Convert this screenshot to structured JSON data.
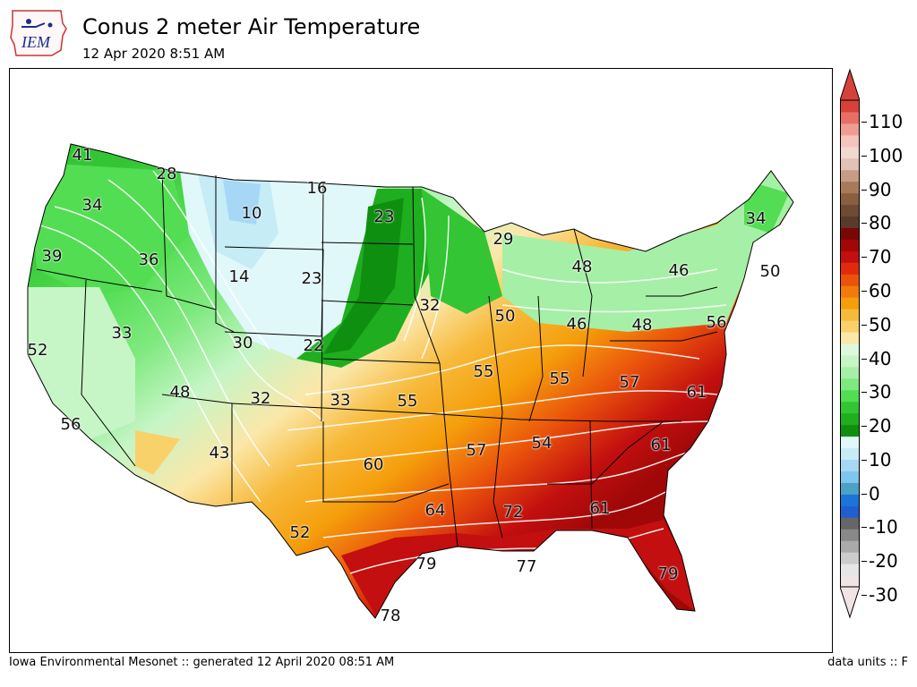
{
  "header": {
    "title": "Conus 2 meter Air Temperature",
    "timestamp": "12 Apr 2020 8:51 AM",
    "logo_text": "IEM"
  },
  "map": {
    "labels": [
      {
        "id": "t1",
        "value": "41"
      },
      {
        "id": "t2",
        "value": "28"
      },
      {
        "id": "t3",
        "value": "16"
      },
      {
        "id": "t4",
        "value": "34"
      },
      {
        "id": "t5",
        "value": "10"
      },
      {
        "id": "t6",
        "value": "23"
      },
      {
        "id": "t7",
        "value": "29"
      },
      {
        "id": "t8",
        "value": "34"
      },
      {
        "id": "t9",
        "value": "39"
      },
      {
        "id": "t10",
        "value": "36"
      },
      {
        "id": "t11",
        "value": "14"
      },
      {
        "id": "t12",
        "value": "23"
      },
      {
        "id": "t13",
        "value": "48"
      },
      {
        "id": "t14",
        "value": "46"
      },
      {
        "id": "t15",
        "value": "50"
      },
      {
        "id": "t16",
        "value": "32"
      },
      {
        "id": "t17",
        "value": "50"
      },
      {
        "id": "t18",
        "value": "33"
      },
      {
        "id": "t19",
        "value": "30"
      },
      {
        "id": "t20",
        "value": "22"
      },
      {
        "id": "t21",
        "value": "46"
      },
      {
        "id": "t22",
        "value": "48"
      },
      {
        "id": "t23",
        "value": "56"
      },
      {
        "id": "t24",
        "value": "52"
      },
      {
        "id": "t25",
        "value": "55"
      },
      {
        "id": "t26",
        "value": "55"
      },
      {
        "id": "t27",
        "value": "57"
      },
      {
        "id": "t28",
        "value": "48"
      },
      {
        "id": "t29",
        "value": "32"
      },
      {
        "id": "t30",
        "value": "33"
      },
      {
        "id": "t31",
        "value": "55"
      },
      {
        "id": "t32",
        "value": "61"
      },
      {
        "id": "t33",
        "value": "56"
      },
      {
        "id": "t34",
        "value": "57"
      },
      {
        "id": "t35",
        "value": "54"
      },
      {
        "id": "t36",
        "value": "61"
      },
      {
        "id": "t37",
        "value": "43"
      },
      {
        "id": "t38",
        "value": "60"
      },
      {
        "id": "t39",
        "value": "64"
      },
      {
        "id": "t40",
        "value": "72"
      },
      {
        "id": "t41",
        "value": "61"
      },
      {
        "id": "t42",
        "value": "52"
      },
      {
        "id": "t43",
        "value": "79"
      },
      {
        "id": "t44",
        "value": "77"
      },
      {
        "id": "t45",
        "value": "79"
      },
      {
        "id": "t46",
        "value": "78"
      }
    ]
  },
  "colorbar": {
    "tick_labels": [
      "110",
      "100",
      "90",
      "80",
      "70",
      "60",
      "50",
      "40",
      "30",
      "20",
      "10",
      "0",
      "-10",
      "-20",
      "-30"
    ],
    "colors": [
      "#f1e4e4",
      "#e6e6e6",
      "#cccccc",
      "#aaaaaa",
      "#888888",
      "#666666",
      "#1f5fd1",
      "#1e73d8",
      "#4aa3c4",
      "#7fc6ee",
      "#a6d8f5",
      "#c6ecf6",
      "#e1f8fb",
      "#0f8f0f",
      "#1fae1f",
      "#33c533",
      "#52dd52",
      "#7ee97e",
      "#a6efa6",
      "#c6f5c6",
      "#ddf8dd",
      "#fbe7a8",
      "#f9d16a",
      "#f7b93a",
      "#f59e0b",
      "#f07b0b",
      "#ea530c",
      "#e12a0b",
      "#c30f0f",
      "#a00808",
      "#7a0606",
      "#5a3a2a",
      "#6e4a34",
      "#8a5e3f",
      "#a97a5a",
      "#c79c85",
      "#e2c2b6",
      "#f1d9d0",
      "#f5c4bd",
      "#ef9d93",
      "#e86f66",
      "#d6413a"
    ]
  },
  "footer": {
    "left": "Iowa Environmental Mesonet :: generated 12 April 2020 08:51 AM",
    "right": "data units :: F"
  }
}
